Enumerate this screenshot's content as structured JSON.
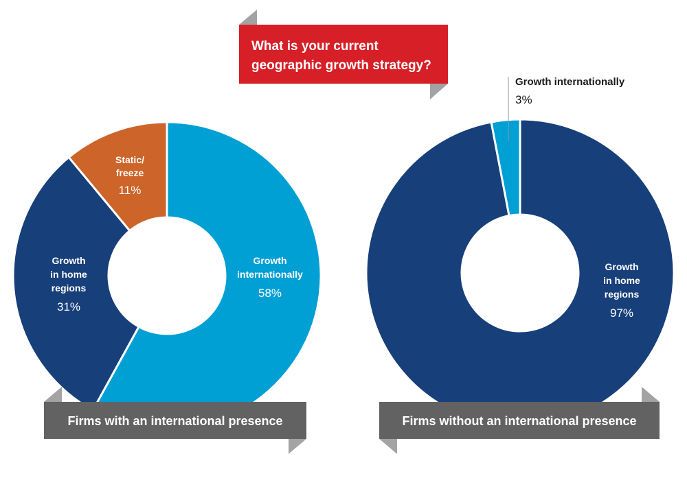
{
  "question": {
    "line1": "What is your current",
    "line2": "geographic growth strategy?",
    "color": "#d71f27"
  },
  "chart_data": [
    {
      "type": "pie",
      "title": "Firms with an international presence",
      "slices": [
        {
          "label_lines": [
            "Growth",
            "internationally"
          ],
          "value": 58,
          "value_label": "58%",
          "color": "#009fd4"
        },
        {
          "label_lines": [
            "Growth",
            "in home",
            "regions"
          ],
          "value": 31,
          "value_label": "31%",
          "color": "#173f7a"
        },
        {
          "label_lines": [
            "Static/",
            "freeze"
          ],
          "value": 11,
          "value_label": "11%",
          "color": "#cd6429"
        }
      ]
    },
    {
      "type": "pie",
      "title": "Firms without an international presence",
      "slices": [
        {
          "label_lines": [
            "Growth",
            "in home",
            "regions"
          ],
          "value": 97,
          "value_label": "97%",
          "color": "#173f7a"
        },
        {
          "label_lines": [
            "Growth internationally"
          ],
          "value": 3,
          "value_label": "3%",
          "color": "#009fd4"
        }
      ]
    }
  ],
  "banner_color": "#626262",
  "fold_color": "#a3a3a3"
}
